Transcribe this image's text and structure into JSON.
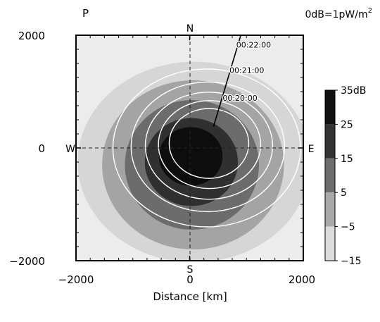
{
  "chart_data": {
    "type": "heatmap",
    "panel_label": "P",
    "reference": {
      "prefix": "0dB=1pW/m",
      "superscript": "2"
    },
    "xlabel": "Distance [km]",
    "ylabel": "",
    "xlim": [
      -2000,
      2000
    ],
    "ylim": [
      -2000,
      2000
    ],
    "x_ticks": [
      -2000,
      0,
      2000
    ],
    "x_tick_labels": [
      "−2000",
      "0",
      "2000"
    ],
    "y_ticks": [
      2000,
      0,
      -2000
    ],
    "y_tick_labels": [
      "2000",
      "0",
      "−2000"
    ],
    "compass": {
      "north": "N",
      "south": "S",
      "west": "W",
      "east": "E"
    },
    "colorbar": {
      "ticks": [
        35,
        25,
        15,
        5,
        -5,
        -15
      ],
      "tick_labels": [
        "35dB",
        "25",
        "15",
        "5",
        "−5",
        "−15"
      ],
      "bands": [
        {
          "from": 25,
          "to": 35,
          "color": "#111111"
        },
        {
          "from": 15,
          "to": 25,
          "color": "#333333"
        },
        {
          "from": 5,
          "to": 15,
          "color": "#6e6e6e"
        },
        {
          "from": -5,
          "to": 5,
          "color": "#a9a9a9"
        },
        {
          "from": -15,
          "to": -5,
          "color": "#dcdcdc"
        }
      ]
    },
    "track": {
      "start": [
        900,
        2000
      ],
      "end": [
        420,
        380
      ],
      "time_labels": [
        {
          "text": "00:22:00",
          "x": 820,
          "y": 1780
        },
        {
          "text": "00:21:00",
          "x": 700,
          "y": 1330
        },
        {
          "text": "00:20:00",
          "x": 580,
          "y": 840
        }
      ]
    },
    "shading": [
      {
        "level_db": -5,
        "color": "#d6d6d6",
        "cx": 80,
        "cy": -250,
        "rx": 2050,
        "ry": 1780
      },
      {
        "level_db": 5,
        "color": "#a4a4a4",
        "cx": 60,
        "cy": -300,
        "rx": 1600,
        "ry": 1500
      },
      {
        "level_db": 15,
        "color": "#6c6c6c",
        "cx": 40,
        "cy": -300,
        "rx": 1180,
        "ry": 1150
      },
      {
        "level_db": 25,
        "color": "#303030",
        "cx": 30,
        "cy": -250,
        "rx": 820,
        "ry": 780
      },
      {
        "level_db": 35,
        "color": "#0d0d0d",
        "cx": 20,
        "cy": -150,
        "rx": 560,
        "ry": 520
      }
    ],
    "contours": [
      {
        "cx": 300,
        "cy": 0,
        "rx": 1650,
        "ry": 1400
      },
      {
        "cx": 320,
        "cy": 20,
        "rx": 1350,
        "ry": 1150
      },
      {
        "cx": 340,
        "cy": 40,
        "rx": 1120,
        "ry": 950
      },
      {
        "cx": 350,
        "cy": 60,
        "rx": 900,
        "ry": 780
      },
      {
        "cx": 340,
        "cy": 80,
        "rx": 700,
        "ry": 620
      }
    ],
    "grid": "dashed cross at origin",
    "legend": "none"
  }
}
